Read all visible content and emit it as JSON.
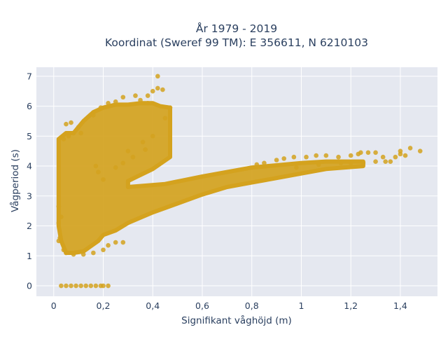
{
  "chart_data": {
    "type": "scatter",
    "title": "År 1979 - 2019",
    "subtitle": "Koordinat (Sweref 99 TM): E 356611, N 6210103",
    "xlabel": "Signifikant våghöjd (m)",
    "ylabel": "Vågperiod (s)",
    "xlim": [
      -0.07,
      1.55
    ],
    "ylim": [
      -0.35,
      7.3
    ],
    "x_ticks": [
      0,
      0.2,
      0.4,
      0.6,
      0.8,
      1,
      1.2,
      1.4
    ],
    "x_tick_labels": [
      "0",
      "0,2",
      "0,4",
      "0,6",
      "0,8",
      "1",
      "1,2",
      "1,4"
    ],
    "y_ticks": [
      0,
      1,
      2,
      3,
      4,
      5,
      6,
      7
    ],
    "y_tick_labels": [
      "0",
      "1",
      "2",
      "3",
      "4",
      "5",
      "6",
      "7"
    ],
    "grid": true,
    "background": "#e5e8f0",
    "grid_color": "#ffffff",
    "marker_color": "#d4a21e",
    "series": [
      {
        "points": [
          [
            0.03,
            0
          ],
          [
            0.05,
            0
          ],
          [
            0.07,
            0
          ],
          [
            0.09,
            0
          ],
          [
            0.11,
            0
          ],
          [
            0.13,
            0
          ],
          [
            0.15,
            0
          ],
          [
            0.17,
            0
          ],
          [
            0.19,
            0
          ],
          [
            0.2,
            0
          ],
          [
            0.22,
            0
          ],
          [
            0.02,
            1.5
          ],
          [
            0.02,
            2.65
          ],
          [
            0.02,
            2.1
          ],
          [
            0.03,
            2.3
          ],
          [
            0.025,
            1.6
          ],
          [
            0.04,
            1.2
          ],
          [
            0.05,
            1.1
          ],
          [
            0.08,
            1.05
          ],
          [
            0.12,
            1.05
          ],
          [
            0.16,
            1.1
          ],
          [
            0.2,
            1.2
          ],
          [
            0.22,
            1.35
          ],
          [
            0.25,
            1.45
          ],
          [
            0.28,
            1.45
          ],
          [
            0.05,
            5.4
          ],
          [
            0.07,
            5.45
          ],
          [
            0.08,
            5.1
          ],
          [
            0.06,
            5.0
          ],
          [
            0.1,
            5.3
          ],
          [
            0.11,
            5.1
          ],
          [
            0.04,
            4.9
          ],
          [
            0.16,
            5.7
          ],
          [
            0.19,
            5.95
          ],
          [
            0.22,
            6.1
          ],
          [
            0.25,
            6.15
          ],
          [
            0.28,
            6.3
          ],
          [
            0.33,
            6.35
          ],
          [
            0.35,
            6.2
          ],
          [
            0.38,
            6.35
          ],
          [
            0.4,
            6.5
          ],
          [
            0.42,
            6.6
          ],
          [
            0.44,
            6.55
          ],
          [
            0.42,
            7.0
          ],
          [
            0.38,
            6.1
          ],
          [
            0.47,
            5.95
          ],
          [
            0.45,
            5.6
          ],
          [
            0.4,
            5.0
          ],
          [
            0.36,
            4.8
          ],
          [
            0.3,
            4.5
          ],
          [
            0.28,
            4.1
          ],
          [
            0.25,
            3.95
          ],
          [
            0.32,
            4.3
          ],
          [
            0.37,
            4.55
          ],
          [
            0.18,
            3.8
          ],
          [
            0.2,
            3.55
          ],
          [
            0.17,
            4.0
          ],
          [
            0.82,
            4.05
          ],
          [
            0.85,
            4.1
          ],
          [
            0.9,
            4.2
          ],
          [
            0.93,
            4.25
          ],
          [
            0.97,
            4.3
          ],
          [
            1.02,
            4.3
          ],
          [
            1.06,
            4.35
          ],
          [
            1.1,
            4.35
          ],
          [
            1.15,
            4.3
          ],
          [
            1.2,
            4.35
          ],
          [
            1.24,
            4.45
          ],
          [
            1.27,
            4.45
          ],
          [
            1.3,
            4.45
          ],
          [
            1.33,
            4.3
          ],
          [
            1.38,
            4.3
          ],
          [
            1.4,
            4.4
          ],
          [
            1.44,
            4.6
          ],
          [
            1.48,
            4.5
          ],
          [
            1.42,
            4.35
          ],
          [
            1.2,
            4.1
          ],
          [
            1.25,
            4.1
          ],
          [
            1.3,
            4.15
          ],
          [
            1.34,
            4.15
          ],
          [
            1.36,
            4.15
          ],
          [
            1.4,
            4.5
          ],
          [
            1.23,
            4.4
          ],
          [
            1.16,
            4.1
          ],
          [
            0.98,
            3.95
          ],
          [
            1.07,
            4.05
          ]
        ],
        "band_upper": [
          [
            0.02,
            4.9
          ],
          [
            0.05,
            5.1
          ],
          [
            0.08,
            5.1
          ],
          [
            0.12,
            5.5
          ],
          [
            0.16,
            5.8
          ],
          [
            0.2,
            5.95
          ],
          [
            0.25,
            6.05
          ],
          [
            0.3,
            6.05
          ],
          [
            0.35,
            6.1
          ],
          [
            0.4,
            6.1
          ],
          [
            0.43,
            6.0
          ],
          [
            0.47,
            5.95
          ],
          [
            0.47,
            4.3
          ],
          [
            0.4,
            3.9
          ],
          [
            0.3,
            3.5
          ],
          [
            0.3,
            3.3
          ],
          [
            0.45,
            3.4
          ],
          [
            0.6,
            3.65
          ],
          [
            0.8,
            3.95
          ],
          [
            1.0,
            4.1
          ],
          [
            1.1,
            4.15
          ],
          [
            1.25,
            4.15
          ]
        ],
        "band_lower": [
          [
            1.25,
            4.0
          ],
          [
            1.1,
            3.9
          ],
          [
            1.0,
            3.75
          ],
          [
            0.9,
            3.6
          ],
          [
            0.8,
            3.45
          ],
          [
            0.7,
            3.3
          ],
          [
            0.6,
            3.05
          ],
          [
            0.5,
            2.75
          ],
          [
            0.4,
            2.45
          ],
          [
            0.3,
            2.1
          ],
          [
            0.25,
            1.85
          ],
          [
            0.2,
            1.7
          ],
          [
            0.18,
            1.5
          ],
          [
            0.12,
            1.15
          ],
          [
            0.08,
            1.1
          ],
          [
            0.05,
            1.1
          ],
          [
            0.03,
            1.5
          ],
          [
            0.02,
            2.0
          ]
        ]
      }
    ]
  }
}
